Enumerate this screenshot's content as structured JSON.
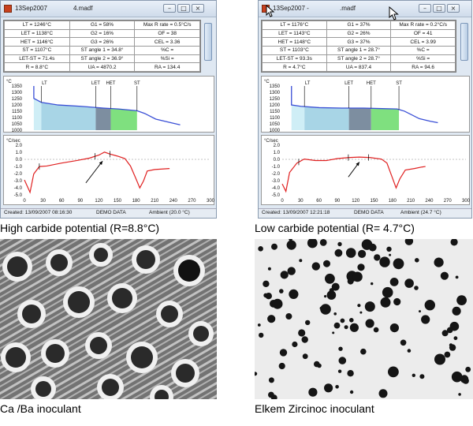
{
  "panels": [
    {
      "title": {
        "left": "13Sep2007",
        "file": "4.madf"
      },
      "stats": [
        [
          "LT = 1246°C",
          "G1 = 58%",
          "Max R rate = 0.5°C/s"
        ],
        [
          "LET = 1138°C",
          "G2 = 16%",
          "OF = 38"
        ],
        [
          "HET = 1146°C",
          "G3 = 26%",
          "CEL = 3.36"
        ],
        [
          "ST = 1107°C",
          "ST angle 1 = 34.8°",
          "%C ="
        ],
        [
          "LET-ST = 71.4s",
          "ST angle 2 = 36.9°",
          "%Si ="
        ],
        [
          "R = 8.8°C",
          "UA = 4870.2",
          "RA = 134.4"
        ]
      ],
      "cooling": {
        "unit": "°C",
        "yticks": [
          "1350",
          "1300",
          "1250",
          "1200",
          "1150",
          "1100",
          "1050",
          "1000"
        ],
        "markers": [
          "LT",
          "LET",
          "HET",
          "ST"
        ]
      },
      "rate": {
        "unit": "°C/sec",
        "yticks": [
          "2.0",
          "1.0",
          "0.0",
          "-1.0",
          "-2.0",
          "-3.0",
          "-4.0",
          "-5.0"
        ],
        "xticks": [
          "0",
          "30",
          "60",
          "90",
          "120",
          "150",
          "180",
          "210",
          "240",
          "270",
          "300"
        ]
      },
      "status": {
        "created": "Created: 13/09/2007 08:16:30",
        "demo": "DEMO DATA",
        "ambient": "Ambient (20.0 °C)"
      },
      "caption": "High carbide potential (R=8.8°C)"
    },
    {
      "title": {
        "left": "13Sep2007 -",
        "file": ".madf"
      },
      "stats": [
        [
          "LT = 1176°C",
          "G1 = 37%",
          "Max R rate = 0.2°C/s"
        ],
        [
          "LET = 1143°C",
          "G2 = 26%",
          "OF = 41"
        ],
        [
          "HET = 1148°C",
          "G3 = 37%",
          "CEL = 3.99"
        ],
        [
          "ST = 1103°C",
          "ST angle 1 = 28.7°",
          "%C ="
        ],
        [
          "LET-ST = 93.3s",
          "ST angle 2 = 28.7°",
          "%Si ="
        ],
        [
          "R = 4.7°C",
          "UA = 837.4",
          "RA = 94.6"
        ]
      ],
      "cooling": {
        "unit": "°C",
        "yticks": [
          "1350",
          "1300",
          "1250",
          "1200",
          "1150",
          "1100",
          "1050",
          "1000"
        ],
        "markers": [
          "LT",
          "LET",
          "HET",
          "ST"
        ]
      },
      "rate": {
        "unit": "°C/sec",
        "yticks": [
          "2.0",
          "1.0",
          "0.0",
          "-1.0",
          "-2.0",
          "-3.0",
          "-4.0",
          "-5.0"
        ],
        "xticks": [
          "0",
          "30",
          "60",
          "90",
          "120",
          "150",
          "180",
          "210",
          "240",
          "270",
          "300"
        ]
      },
      "status": {
        "created": "Created: 13/09/2007 12:21:18",
        "demo": "DEMO DATA",
        "ambient": "Ambient (24.7 °C)"
      },
      "caption": "Low carbide potential (R= 4.7°C)"
    }
  ],
  "micrographs": [
    {
      "caption": "Ca /Ba inoculant"
    },
    {
      "caption": "Elkem Zircinoc inoculant"
    }
  ],
  "colors": {
    "cooling_curve": "#3a4fd6",
    "rate_curve": "#e02020",
    "zone_light": "#cfeef6",
    "zone_mid": "#a8d5e6",
    "zone_dark": "#7d8ea0",
    "zone_green": "#7fe07f"
  }
}
